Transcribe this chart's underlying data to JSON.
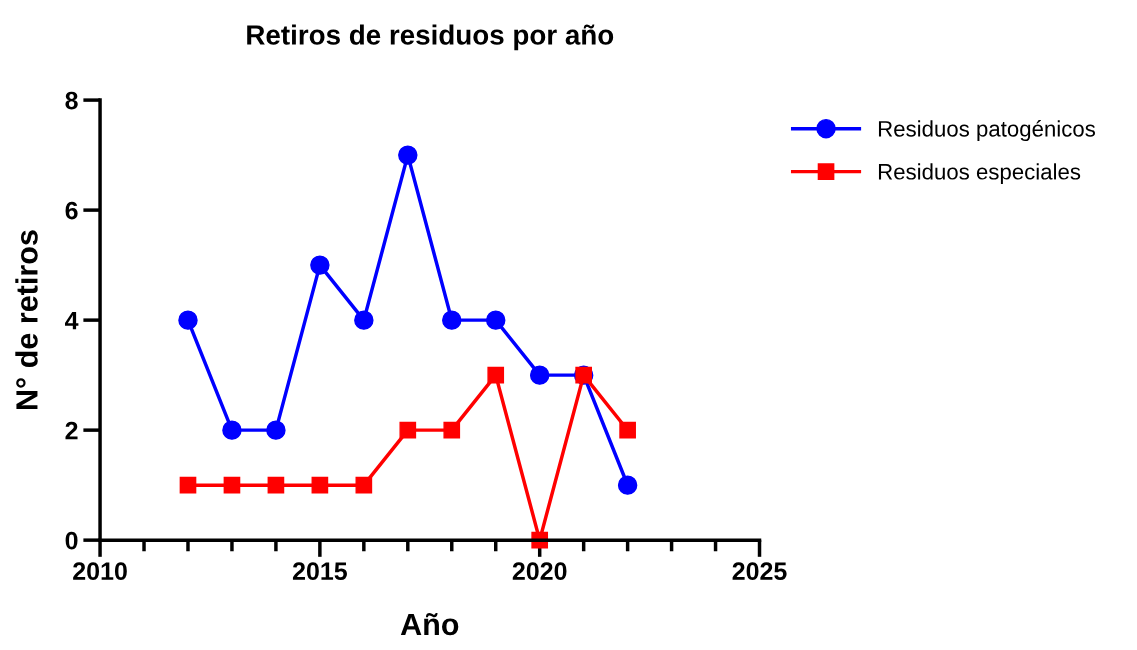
{
  "chart_data": {
    "type": "line",
    "title": "Retiros de residuos por año",
    "xlabel": "Año",
    "ylabel": "N° de retiros",
    "x": [
      2012,
      2013,
      2014,
      2015,
      2016,
      2017,
      2018,
      2019,
      2020,
      2021,
      2022
    ],
    "series": [
      {
        "name": "Residuos patogénicos",
        "color": "#0000ff",
        "marker": "circle",
        "values": [
          4,
          2,
          2,
          5,
          4,
          7,
          4,
          4,
          3,
          3,
          1
        ]
      },
      {
        "name": "Residuos especiales",
        "color": "#ff0000",
        "marker": "square",
        "values": [
          1,
          1,
          1,
          1,
          1,
          2,
          2,
          3,
          0,
          3,
          2
        ]
      }
    ],
    "xlim": [
      2010,
      2025
    ],
    "xticks": [
      2010,
      {
        "value": 2011,
        "label": null
      },
      {
        "value": 2012,
        "label": null
      },
      {
        "value": 2013,
        "label": null
      },
      {
        "value": 2014,
        "label": null
      },
      2015,
      {
        "value": 2016,
        "label": null
      },
      {
        "value": 2017,
        "label": null
      },
      {
        "value": 2018,
        "label": null
      },
      {
        "value": 2019,
        "label": null
      },
      2020,
      {
        "value": 2021,
        "label": null
      },
      {
        "value": 2022,
        "label": null
      },
      {
        "value": 2023,
        "label": null
      },
      {
        "value": 2024,
        "label": null
      },
      2025
    ],
    "ylim": [
      0,
      8
    ],
    "yticks": [
      0,
      2,
      4,
      6,
      8
    ],
    "grid": false,
    "legend": "right",
    "line_style": "solid"
  }
}
